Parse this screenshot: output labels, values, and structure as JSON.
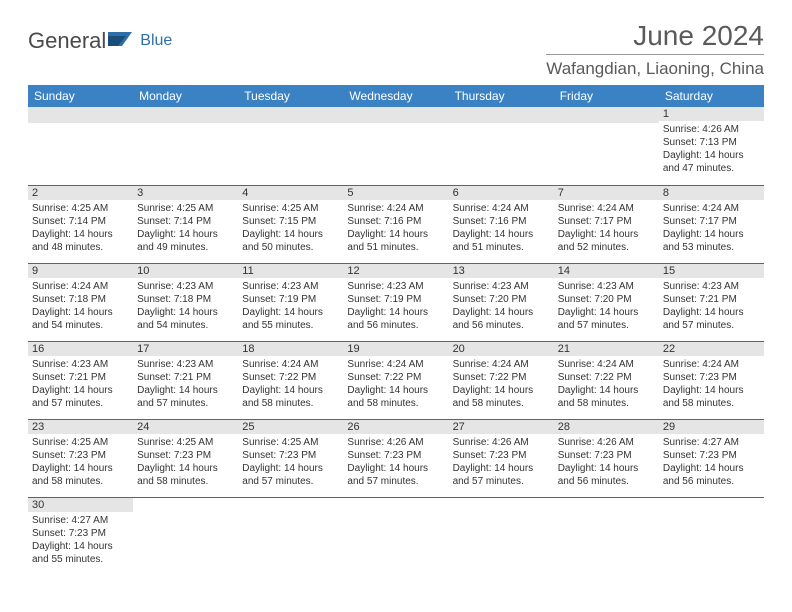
{
  "logo": {
    "main": "General",
    "sub": "Blue"
  },
  "title": "June 2024",
  "location": "Wafangdian, Liaoning, China",
  "header_bg": "#3b82c4",
  "border_color": "#2f6fa8",
  "daynum_bg": "#e5e5e5",
  "weekdays": [
    "Sunday",
    "Monday",
    "Tuesday",
    "Wednesday",
    "Thursday",
    "Friday",
    "Saturday"
  ],
  "weeks": [
    [
      null,
      null,
      null,
      null,
      null,
      null,
      {
        "n": "1",
        "sr": "Sunrise: 4:26 AM",
        "ss": "Sunset: 7:13 PM",
        "dl": "Daylight: 14 hours and 47 minutes."
      }
    ],
    [
      {
        "n": "2",
        "sr": "Sunrise: 4:25 AM",
        "ss": "Sunset: 7:14 PM",
        "dl": "Daylight: 14 hours and 48 minutes."
      },
      {
        "n": "3",
        "sr": "Sunrise: 4:25 AM",
        "ss": "Sunset: 7:14 PM",
        "dl": "Daylight: 14 hours and 49 minutes."
      },
      {
        "n": "4",
        "sr": "Sunrise: 4:25 AM",
        "ss": "Sunset: 7:15 PM",
        "dl": "Daylight: 14 hours and 50 minutes."
      },
      {
        "n": "5",
        "sr": "Sunrise: 4:24 AM",
        "ss": "Sunset: 7:16 PM",
        "dl": "Daylight: 14 hours and 51 minutes."
      },
      {
        "n": "6",
        "sr": "Sunrise: 4:24 AM",
        "ss": "Sunset: 7:16 PM",
        "dl": "Daylight: 14 hours and 51 minutes."
      },
      {
        "n": "7",
        "sr": "Sunrise: 4:24 AM",
        "ss": "Sunset: 7:17 PM",
        "dl": "Daylight: 14 hours and 52 minutes."
      },
      {
        "n": "8",
        "sr": "Sunrise: 4:24 AM",
        "ss": "Sunset: 7:17 PM",
        "dl": "Daylight: 14 hours and 53 minutes."
      }
    ],
    [
      {
        "n": "9",
        "sr": "Sunrise: 4:24 AM",
        "ss": "Sunset: 7:18 PM",
        "dl": "Daylight: 14 hours and 54 minutes."
      },
      {
        "n": "10",
        "sr": "Sunrise: 4:23 AM",
        "ss": "Sunset: 7:18 PM",
        "dl": "Daylight: 14 hours and 54 minutes."
      },
      {
        "n": "11",
        "sr": "Sunrise: 4:23 AM",
        "ss": "Sunset: 7:19 PM",
        "dl": "Daylight: 14 hours and 55 minutes."
      },
      {
        "n": "12",
        "sr": "Sunrise: 4:23 AM",
        "ss": "Sunset: 7:19 PM",
        "dl": "Daylight: 14 hours and 56 minutes."
      },
      {
        "n": "13",
        "sr": "Sunrise: 4:23 AM",
        "ss": "Sunset: 7:20 PM",
        "dl": "Daylight: 14 hours and 56 minutes."
      },
      {
        "n": "14",
        "sr": "Sunrise: 4:23 AM",
        "ss": "Sunset: 7:20 PM",
        "dl": "Daylight: 14 hours and 57 minutes."
      },
      {
        "n": "15",
        "sr": "Sunrise: 4:23 AM",
        "ss": "Sunset: 7:21 PM",
        "dl": "Daylight: 14 hours and 57 minutes."
      }
    ],
    [
      {
        "n": "16",
        "sr": "Sunrise: 4:23 AM",
        "ss": "Sunset: 7:21 PM",
        "dl": "Daylight: 14 hours and 57 minutes."
      },
      {
        "n": "17",
        "sr": "Sunrise: 4:23 AM",
        "ss": "Sunset: 7:21 PM",
        "dl": "Daylight: 14 hours and 57 minutes."
      },
      {
        "n": "18",
        "sr": "Sunrise: 4:24 AM",
        "ss": "Sunset: 7:22 PM",
        "dl": "Daylight: 14 hours and 58 minutes."
      },
      {
        "n": "19",
        "sr": "Sunrise: 4:24 AM",
        "ss": "Sunset: 7:22 PM",
        "dl": "Daylight: 14 hours and 58 minutes."
      },
      {
        "n": "20",
        "sr": "Sunrise: 4:24 AM",
        "ss": "Sunset: 7:22 PM",
        "dl": "Daylight: 14 hours and 58 minutes."
      },
      {
        "n": "21",
        "sr": "Sunrise: 4:24 AM",
        "ss": "Sunset: 7:22 PM",
        "dl": "Daylight: 14 hours and 58 minutes."
      },
      {
        "n": "22",
        "sr": "Sunrise: 4:24 AM",
        "ss": "Sunset: 7:23 PM",
        "dl": "Daylight: 14 hours and 58 minutes."
      }
    ],
    [
      {
        "n": "23",
        "sr": "Sunrise: 4:25 AM",
        "ss": "Sunset: 7:23 PM",
        "dl": "Daylight: 14 hours and 58 minutes."
      },
      {
        "n": "24",
        "sr": "Sunrise: 4:25 AM",
        "ss": "Sunset: 7:23 PM",
        "dl": "Daylight: 14 hours and 58 minutes."
      },
      {
        "n": "25",
        "sr": "Sunrise: 4:25 AM",
        "ss": "Sunset: 7:23 PM",
        "dl": "Daylight: 14 hours and 57 minutes."
      },
      {
        "n": "26",
        "sr": "Sunrise: 4:26 AM",
        "ss": "Sunset: 7:23 PM",
        "dl": "Daylight: 14 hours and 57 minutes."
      },
      {
        "n": "27",
        "sr": "Sunrise: 4:26 AM",
        "ss": "Sunset: 7:23 PM",
        "dl": "Daylight: 14 hours and 57 minutes."
      },
      {
        "n": "28",
        "sr": "Sunrise: 4:26 AM",
        "ss": "Sunset: 7:23 PM",
        "dl": "Daylight: 14 hours and 56 minutes."
      },
      {
        "n": "29",
        "sr": "Sunrise: 4:27 AM",
        "ss": "Sunset: 7:23 PM",
        "dl": "Daylight: 14 hours and 56 minutes."
      }
    ],
    [
      {
        "n": "30",
        "sr": "Sunrise: 4:27 AM",
        "ss": "Sunset: 7:23 PM",
        "dl": "Daylight: 14 hours and 55 minutes."
      },
      null,
      null,
      null,
      null,
      null,
      null
    ]
  ]
}
